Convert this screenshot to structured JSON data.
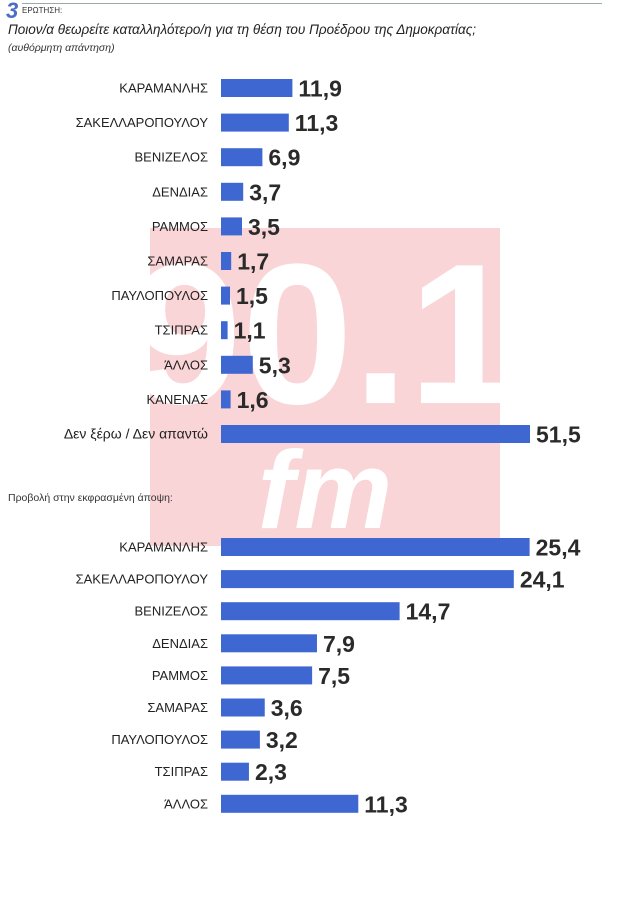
{
  "header": {
    "question_number": "3",
    "question_label": "ΕΡΩΤΗΣΗ:",
    "question_text": "Ποιον/α  θεωρείτε καταλληλότερο/η  για τη θέση του Προέδρου της Δημοκρατίας;",
    "question_sub": "(αυθόρμητη απάντηση)"
  },
  "watermark": {
    "text_top": "90.1",
    "text_bottom": "fm",
    "color": "#e8323c"
  },
  "bar_color": "#3f67d1",
  "chart_data": [
    {
      "type": "bar",
      "orientation": "horizontal",
      "title": "",
      "categories": [
        "ΚΑΡΑΜΑΝΛΗΣ",
        "ΣΑΚΕΛΛΑΡΟΠΟΥΛΟΥ",
        "ΒΕΝΙΖΕΛΟΣ",
        "ΔΕΝΔΙΑΣ",
        "ΡΑΜΜΟΣ",
        "ΣΑΜΑΡΑΣ",
        "ΠΑΥΛΟΠΟΥΛΟΣ",
        "ΤΣΙΠΡΑΣ",
        "ΆΛΛΟΣ",
        "ΚΑΝΕΝΑΣ",
        "Δεν ξέρω / Δεν απαντώ"
      ],
      "values": [
        11.9,
        11.3,
        6.9,
        3.7,
        3.5,
        1.7,
        1.5,
        1.1,
        5.3,
        1.6,
        51.5
      ],
      "value_labels": [
        "11,9",
        "11,3",
        "6,9",
        "3,7",
        "3,5",
        "1,7",
        "1,5",
        "1,1",
        "5,3",
        "1,6",
        "51,5"
      ],
      "xlim": [
        0,
        60
      ]
    },
    {
      "type": "bar",
      "orientation": "horizontal",
      "title": "Προβολή στην εκφρασμένη άποψη:",
      "categories": [
        "ΚΑΡΑΜΑΝΛΗΣ",
        "ΣΑΚΕΛΛΑΡΟΠΟΥΛΟΥ",
        "ΒΕΝΙΖΕΛΟΣ",
        "ΔΕΝΔΙΑΣ",
        "ΡΑΜΜΟΣ",
        "ΣΑΜΑΡΑΣ",
        "ΠΑΥΛΟΠΟΥΛΟΣ",
        "ΤΣΙΠΡΑΣ",
        "ΆΛΛΟΣ"
      ],
      "values": [
        25.4,
        24.1,
        14.7,
        7.9,
        7.5,
        3.6,
        3.2,
        2.3,
        11.3
      ],
      "value_labels": [
        "25,4",
        "24,1",
        "14,7",
        "7,9",
        "7,5",
        "3,6",
        "3,2",
        "2,3",
        "11,3"
      ],
      "xlim": [
        0,
        30
      ]
    }
  ]
}
